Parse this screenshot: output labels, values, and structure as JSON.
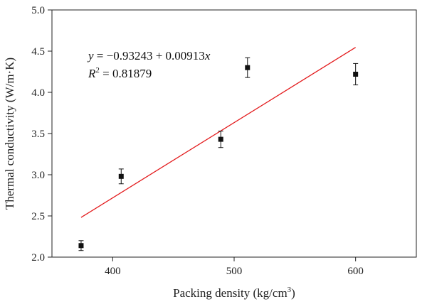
{
  "chart_data": {
    "type": "scatter",
    "xlabel": "Packing density (kg/cm",
    "xlabel_sup": "3",
    "xlabel_close": ")",
    "ylabel": "Thermal conductivity (W/m·K)",
    "xlim": [
      350,
      650
    ],
    "ylim": [
      2.0,
      5.0
    ],
    "x_ticks": [
      400,
      500,
      600
    ],
    "y_ticks": [
      2.0,
      2.5,
      3.0,
      3.5,
      4.0,
      4.5,
      5.0
    ],
    "y_tick_labels": [
      "2.0",
      "2.5",
      "3.0",
      "3.5",
      "4.0",
      "4.5",
      "5.0"
    ],
    "grid": false,
    "points": [
      {
        "x": 374,
        "y": 2.14,
        "err": 0.06
      },
      {
        "x": 407,
        "y": 2.98,
        "err": 0.09
      },
      {
        "x": 489,
        "y": 3.43,
        "err": 0.1
      },
      {
        "x": 511,
        "y": 4.3,
        "err": 0.12
      },
      {
        "x": 600,
        "y": 4.22,
        "err": 0.13
      }
    ],
    "fit": {
      "intercept": -0.93243,
      "slope": 0.00913,
      "x_start": 374,
      "x_end": 600,
      "color": "#e31a1c",
      "equation": {
        "y": "y",
        "eq": " = −0.93243 + 0.00913",
        "x": "x"
      },
      "r2": {
        "r": "R",
        "sup": "2",
        "value": " = 0.81879"
      }
    },
    "marker_color": "#111111"
  }
}
